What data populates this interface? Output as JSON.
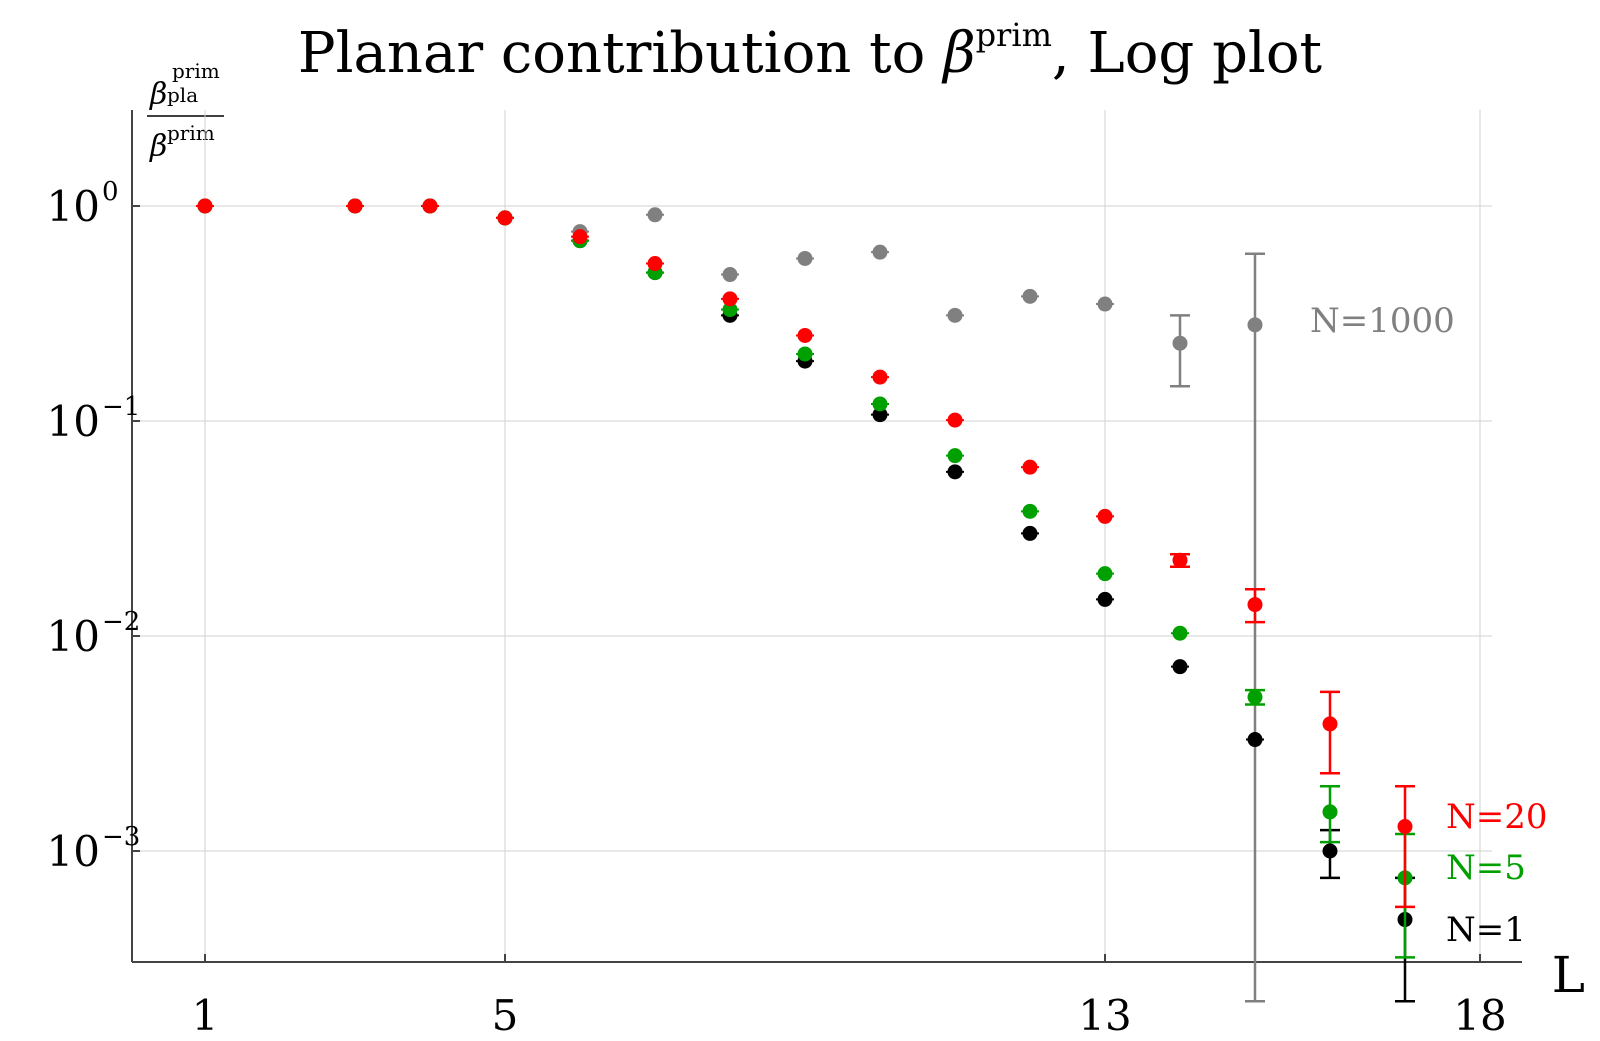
{
  "chart_data": {
    "type": "scatter",
    "title": {
      "main": "Planar contribution to ",
      "beta": "β",
      "sup": "prim",
      "suffix": ", Log plot"
    },
    "ylabel": {
      "num_beta": "β",
      "num_sub": "pla",
      "num_sup": "prim",
      "den_beta": "β",
      "den_sup": "prim"
    },
    "xlabel": "L",
    "x_ticks": [
      1,
      5,
      13,
      18
    ],
    "y_ticks": [
      {
        "base": "10",
        "exp": "0",
        "value": 1
      },
      {
        "base": "10",
        "exp": "−1",
        "value": 0.1
      },
      {
        "base": "10",
        "exp": "−2",
        "value": 0.01
      },
      {
        "base": "10",
        "exp": "−3",
        "value": 0.001
      }
    ],
    "xlim": [
      0.1,
      18.3
    ],
    "ylim": [
      0.0003,
      2.8
    ],
    "y_scale": "log",
    "grid": true,
    "legend_placement": "inline-right",
    "series": [
      {
        "name": "N=1000",
        "color": "#808080",
        "points": [
          {
            "x": 1,
            "y": 1.0
          },
          {
            "x": 3,
            "y": 1.0
          },
          {
            "x": 4,
            "y": 1.0
          },
          {
            "x": 5,
            "y": 0.88
          },
          {
            "x": 6,
            "y": 0.76
          },
          {
            "x": 7,
            "y": 0.91
          },
          {
            "x": 8,
            "y": 0.48
          },
          {
            "x": 9,
            "y": 0.57
          },
          {
            "x": 10,
            "y": 0.61
          },
          {
            "x": 11,
            "y": 0.31
          },
          {
            "x": 12,
            "y": 0.38
          },
          {
            "x": 13,
            "y": 0.35
          },
          {
            "x": 14,
            "y": 0.23,
            "err_lo": 0.145,
            "err_hi": 0.31
          },
          {
            "x": 15,
            "y": 0.28,
            "err_lo": 0.0002,
            "err_hi": 0.6
          }
        ]
      },
      {
        "name": "N=20",
        "color": "#ff0000",
        "points": [
          {
            "x": 1,
            "y": 1.0
          },
          {
            "x": 3,
            "y": 1.0
          },
          {
            "x": 4,
            "y": 1.0
          },
          {
            "x": 5,
            "y": 0.88
          },
          {
            "x": 6,
            "y": 0.72
          },
          {
            "x": 7,
            "y": 0.54
          },
          {
            "x": 8,
            "y": 0.37
          },
          {
            "x": 9,
            "y": 0.25
          },
          {
            "x": 10,
            "y": 0.16
          },
          {
            "x": 11,
            "y": 0.101
          },
          {
            "x": 12,
            "y": 0.061
          },
          {
            "x": 13,
            "y": 0.036
          },
          {
            "x": 14,
            "y": 0.0225,
            "err_lo": 0.021,
            "err_hi": 0.024
          },
          {
            "x": 15,
            "y": 0.014,
            "err_lo": 0.0116,
            "err_hi": 0.0165
          },
          {
            "x": 16,
            "y": 0.0039,
            "err_lo": 0.0023,
            "err_hi": 0.0055
          },
          {
            "x": 17,
            "y": 0.0013,
            "err_lo": 0.00055,
            "err_hi": 0.002
          }
        ]
      },
      {
        "name": "N=5",
        "color": "#00a000",
        "points": [
          {
            "x": 1,
            "y": 1.0
          },
          {
            "x": 3,
            "y": 1.0
          },
          {
            "x": 4,
            "y": 1.0
          },
          {
            "x": 5,
            "y": 0.88
          },
          {
            "x": 6,
            "y": 0.69
          },
          {
            "x": 7,
            "y": 0.49
          },
          {
            "x": 8,
            "y": 0.33
          },
          {
            "x": 9,
            "y": 0.205
          },
          {
            "x": 10,
            "y": 0.12
          },
          {
            "x": 11,
            "y": 0.069
          },
          {
            "x": 12,
            "y": 0.038
          },
          {
            "x": 13,
            "y": 0.0195
          },
          {
            "x": 14,
            "y": 0.0103
          },
          {
            "x": 15,
            "y": 0.0052,
            "err_lo": 0.0048,
            "err_hi": 0.0056
          },
          {
            "x": 16,
            "y": 0.00152,
            "err_lo": 0.0011,
            "err_hi": 0.002
          },
          {
            "x": 17,
            "y": 0.00075,
            "err_lo": 0.00032,
            "err_hi": 0.0012
          }
        ]
      },
      {
        "name": "N=1",
        "color": "#000000",
        "points": [
          {
            "x": 1,
            "y": 1.0
          },
          {
            "x": 3,
            "y": 1.0
          },
          {
            "x": 4,
            "y": 1.0
          },
          {
            "x": 5,
            "y": 0.88
          },
          {
            "x": 6,
            "y": 0.69
          },
          {
            "x": 7,
            "y": 0.49
          },
          {
            "x": 8,
            "y": 0.31
          },
          {
            "x": 9,
            "y": 0.19
          },
          {
            "x": 10,
            "y": 0.107
          },
          {
            "x": 11,
            "y": 0.058
          },
          {
            "x": 12,
            "y": 0.03
          },
          {
            "x": 13,
            "y": 0.0148
          },
          {
            "x": 14,
            "y": 0.0072
          },
          {
            "x": 15,
            "y": 0.0033
          },
          {
            "x": 16,
            "y": 0.001,
            "err_lo": 0.00075,
            "err_hi": 0.00125
          },
          {
            "x": 17,
            "y": 0.00048,
            "err_lo": 0.0002,
            "err_hi": 0.00075
          }
        ]
      }
    ]
  }
}
